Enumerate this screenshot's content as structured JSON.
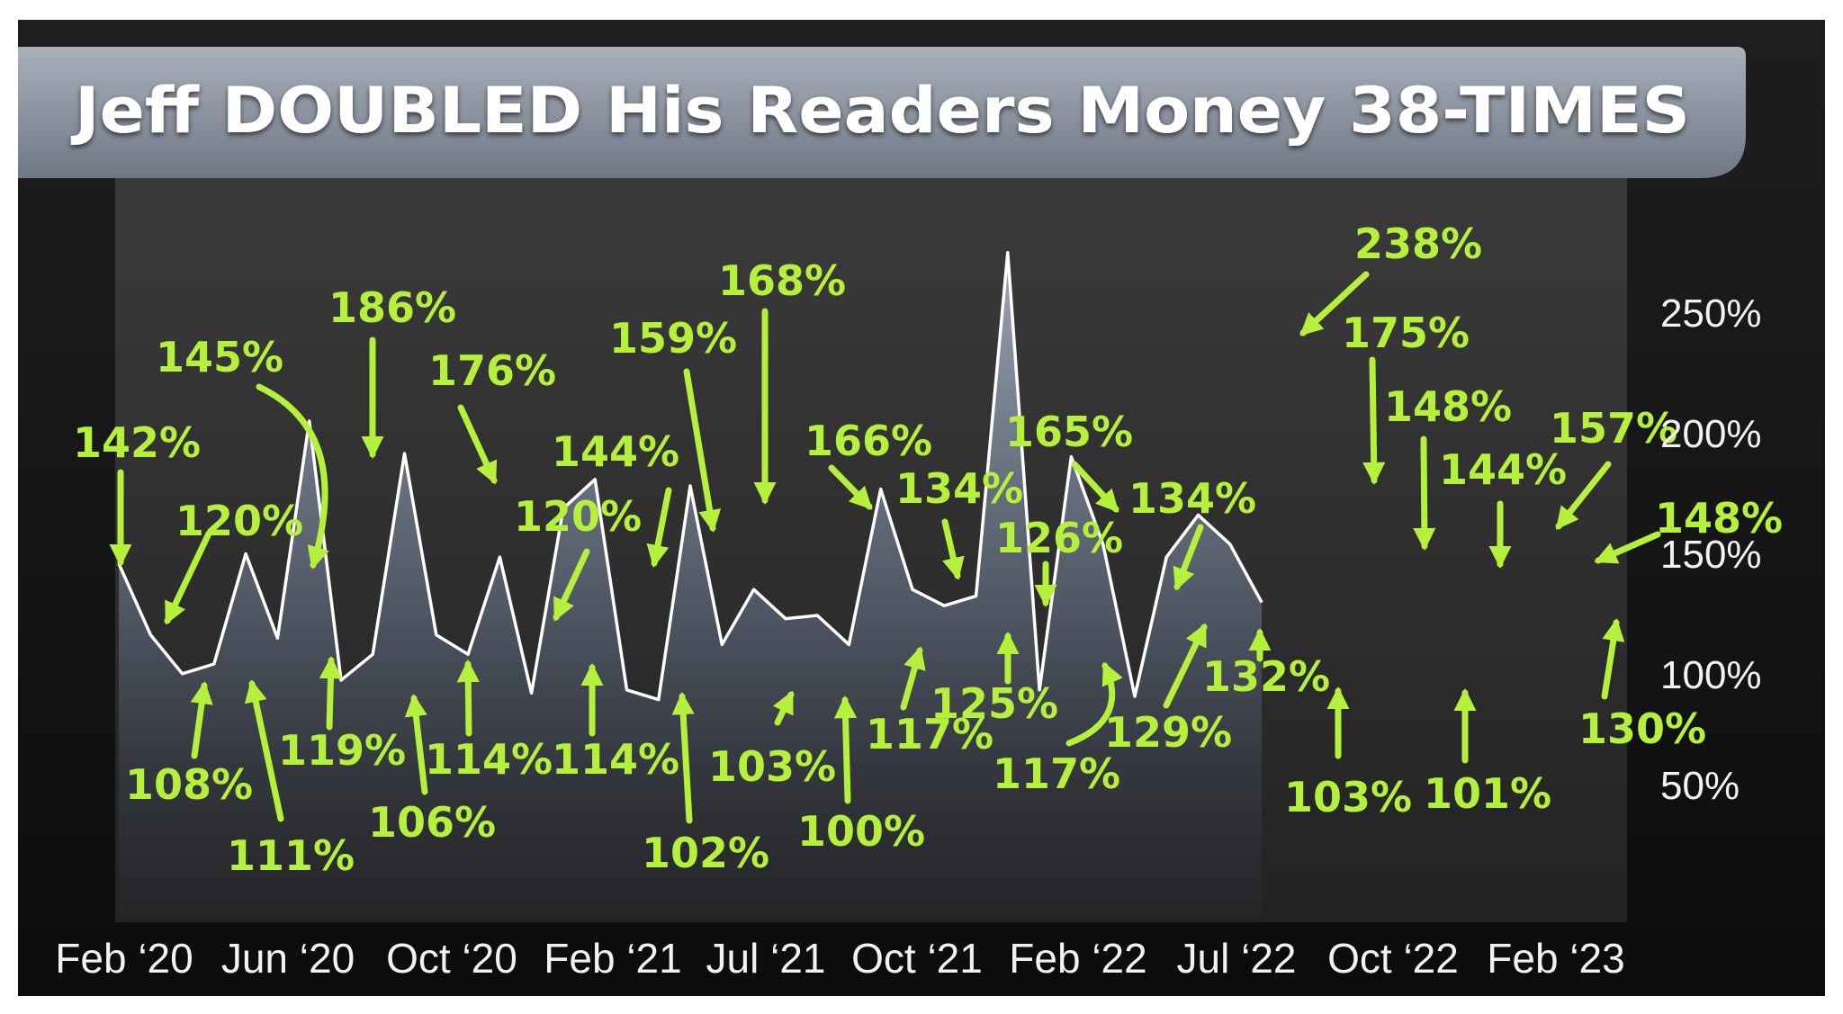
{
  "title": "Jeff DOUBLED His Readers Money 38-TIMES",
  "colors": {
    "accent": "#b5f03c",
    "line": "#ffffff",
    "background": "#141414",
    "title_band": "#8a93a0",
    "text": "#ffffff"
  },
  "chart_data": {
    "type": "area",
    "title": "Jeff DOUBLED His Readers Money 38-TIMES",
    "xlabel": "",
    "ylabel": "",
    "x_tick_labels": [
      "Feb ‘20",
      "Jun ‘20",
      "Oct ‘20",
      "Feb ‘21",
      "Jul ‘21",
      "Oct ‘21",
      "Feb ‘22",
      "Jul ‘22",
      "Oct ‘22",
      "Feb ‘23"
    ],
    "y_tick_labels": [
      "250%",
      "200%",
      "150%",
      "100%",
      "50%"
    ],
    "ylim": [
      50,
      250
    ],
    "grid": false,
    "series": [
      {
        "values": [
          142,
          120,
          108,
          111,
          145,
          119,
          186,
          106,
          114,
          176,
          120,
          114,
          144,
          102,
          159,
          168,
          103,
          100,
          166,
          117,
          134,
          125,
          126,
          117,
          165,
          134,
          129,
          132,
          238,
          103,
          175,
          148,
          101,
          144,
          157,
          148,
          130
        ],
        "labels": [
          "142%",
          "120%",
          "108%",
          "111%",
          "145%",
          "119%",
          "186%",
          "106%",
          "114%",
          "176%",
          "120%",
          "114%",
          "144%",
          "102%",
          "159%",
          "168%",
          "103%",
          "100%",
          "166%",
          "117%",
          "134%",
          "125%",
          "126%",
          "117%",
          "165%",
          "134%",
          "129%",
          "132%",
          "238%",
          "103%",
          "175%",
          "148%",
          "101%",
          "144%",
          "157%",
          "148%",
          "130%"
        ]
      }
    ]
  }
}
